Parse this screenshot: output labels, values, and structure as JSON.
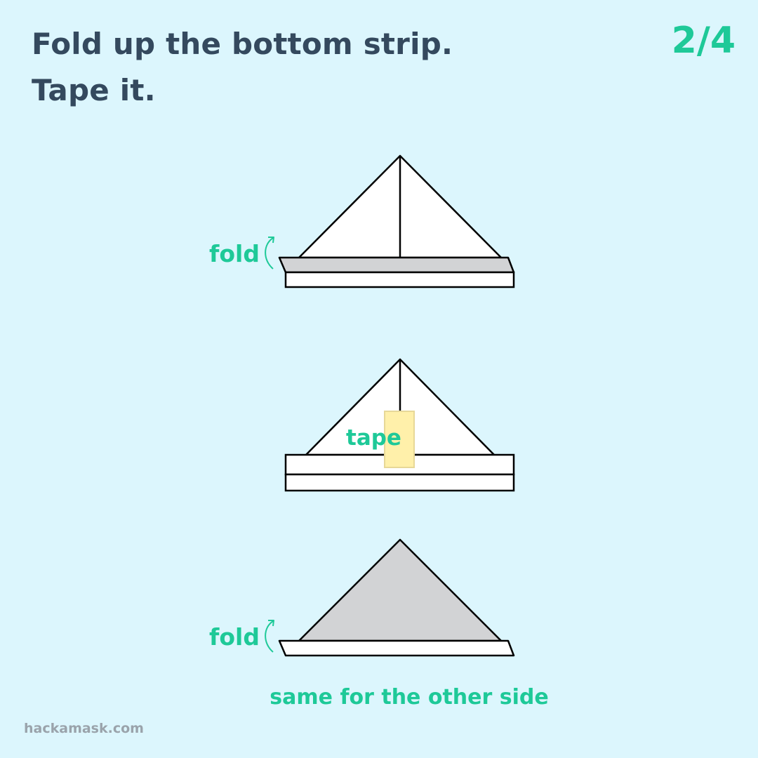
{
  "instructions": {
    "line_1": "Fold up the bottom strip.",
    "line_2": "Tape it."
  },
  "step_counter": "2/4",
  "diagram": {
    "fold_label": "fold",
    "tape_label": "tape",
    "caption": "same for the other side"
  },
  "site_credit": "hackamask.com",
  "colors": {
    "background": "#dcf6fd",
    "accent": "#1ec998",
    "heading": "#34495e",
    "folded_paper": "#d2d3d5",
    "tape": "#fff0aa"
  }
}
